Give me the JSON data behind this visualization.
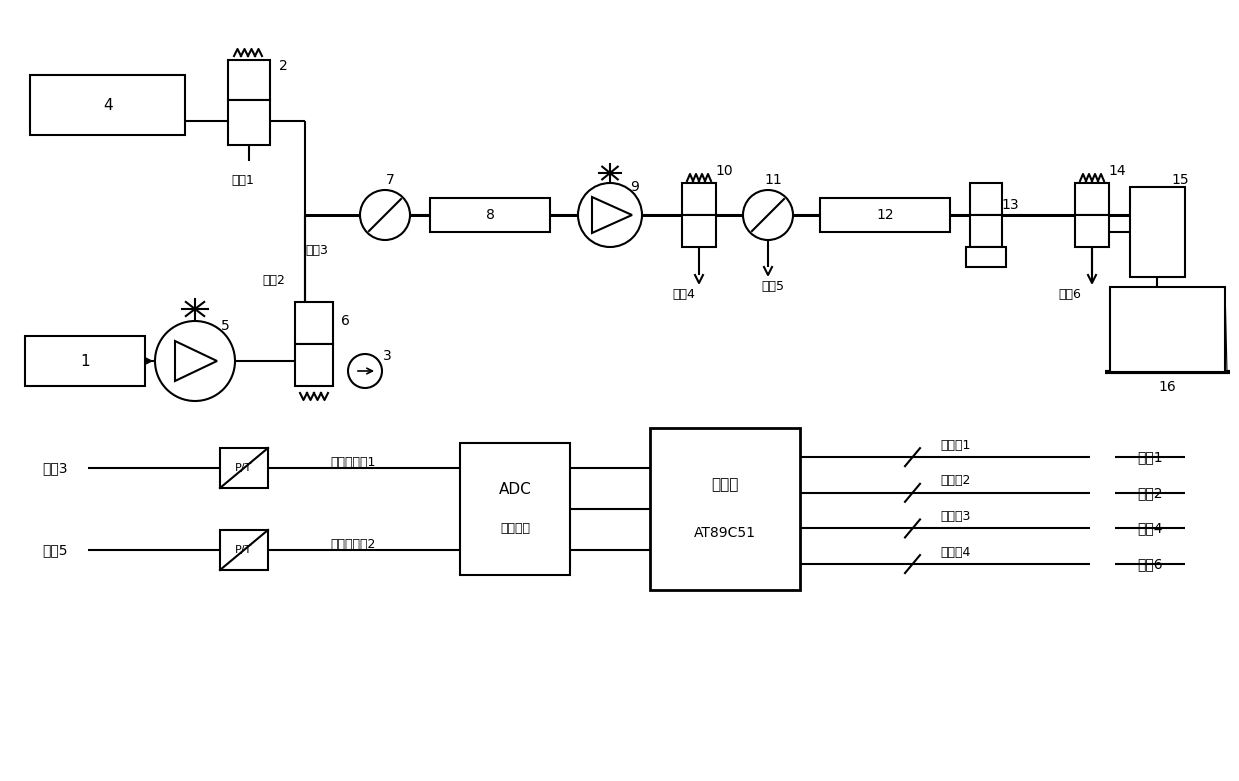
{
  "bg_color": "#ffffff",
  "figsize": [
    12.39,
    7.81
  ],
  "dpi": 100,
  "labels": {
    "jk1": "接口1",
    "jk2": "接口2",
    "jk3": "接口3",
    "jk4": "接口4",
    "jk5": "接口5",
    "jk6": "接口6",
    "sensor1": "压力传感器1",
    "sensor2": "压力传感器2",
    "adc1": "ADC",
    "adc2": "数模转换",
    "mcu1": "单片机",
    "mcu2": "AT89C51",
    "relay1": "继电器1",
    "relay2": "继电器2",
    "relay3": "继电器3",
    "relay4": "继电器4"
  }
}
